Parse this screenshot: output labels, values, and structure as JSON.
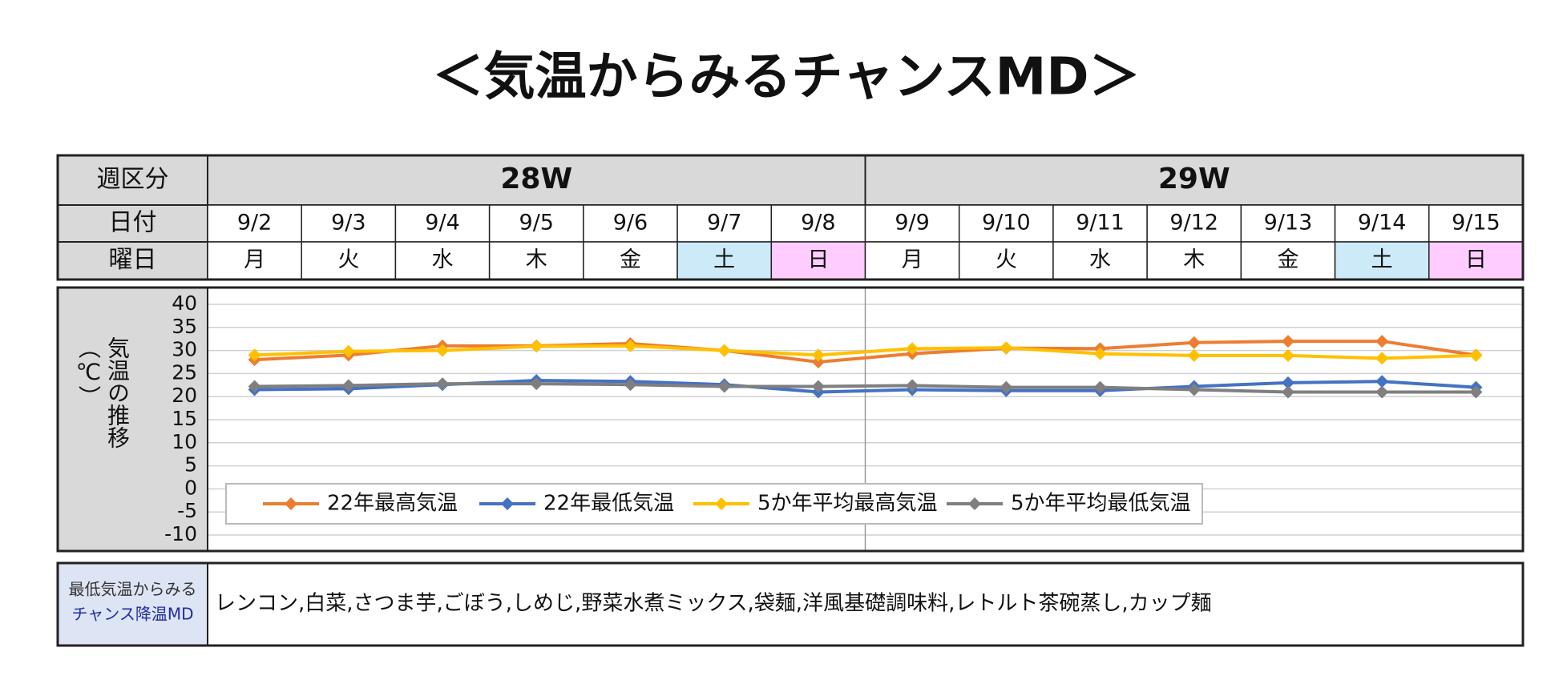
{
  "title": "＜気温からみるチャンスMD＞",
  "table": {
    "row_labels": [
      "週区分",
      "日付",
      "曜日"
    ],
    "weeks": [
      "28W",
      "29W"
    ],
    "dates": [
      "9/2",
      "9/3",
      "9/4",
      "9/5",
      "9/6",
      "9/7",
      "9/8",
      "9/9",
      "9/10",
      "9/11",
      "9/12",
      "9/13",
      "9/14",
      "9/15"
    ],
    "weekdays": [
      "月",
      "火",
      "水",
      "木",
      "金",
      "土",
      "日",
      "月",
      "火",
      "水",
      "木",
      "金",
      "土",
      "日"
    ],
    "weekday_colors": [
      "#ffffff",
      "#ffffff",
      "#ffffff",
      "#ffffff",
      "#ffffff",
      "#cdeaf8",
      "#ffccff",
      "#ffffff",
      "#ffffff",
      "#ffffff",
      "#ffffff",
      "#ffffff",
      "#cdeaf8",
      "#ffccff"
    ]
  },
  "chart_data": {
    "type": "line",
    "y_label": "気温の推移（℃）",
    "categories": [
      "9/2",
      "9/3",
      "9/4",
      "9/5",
      "9/6",
      "9/7",
      "9/8",
      "9/9",
      "9/10",
      "9/11",
      "9/12",
      "9/13",
      "9/14",
      "9/15"
    ],
    "ylim": [
      -10,
      40
    ],
    "yticks": [
      -10,
      -5,
      0,
      5,
      10,
      15,
      20,
      25,
      30,
      35,
      40
    ],
    "grid": true,
    "legend": "lower left",
    "series": [
      {
        "name": "22年最高気温",
        "color": "#ed7d31",
        "values": [
          28,
          29,
          31,
          31,
          31.5,
          30,
          27.5,
          29.3,
          30.5,
          30.4,
          31.7,
          32,
          32,
          29
        ]
      },
      {
        "name": "22年最低気温",
        "color": "#4472c4",
        "values": [
          21.5,
          21.7,
          22.6,
          23.5,
          23.3,
          22.6,
          21,
          21.5,
          21.3,
          21.3,
          22.2,
          23,
          23.3,
          22
        ]
      },
      {
        "name": "5か年平均最高気温",
        "color": "#ffc000",
        "values": [
          29,
          29.8,
          30,
          30.9,
          31,
          30,
          29,
          30.4,
          30.6,
          29.3,
          28.9,
          28.9,
          28.3,
          28.9
        ]
      },
      {
        "name": "5か年平均最低気温",
        "color": "#7f7f7f",
        "values": [
          22.2,
          22.4,
          22.8,
          22.8,
          22.6,
          22.2,
          22.2,
          22.4,
          22,
          22,
          21.5,
          21,
          21,
          21
        ]
      }
    ]
  },
  "md_box": {
    "label_lines": [
      "最低気温からみる",
      "チャンス降温MD"
    ],
    "items": "レンコン,白菜,さつま芋,ごぼう,しめじ,野菜水煮ミックス,袋麺,洋風基礎調味料,レトルト茶碗蒸し,カップ麺"
  }
}
